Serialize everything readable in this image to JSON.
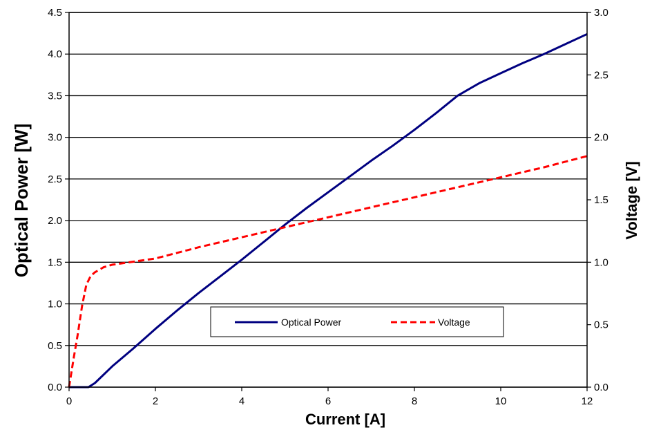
{
  "chart_data": {
    "type": "line",
    "xlabel": "Current [A]",
    "ylabel": "Optical Power [W]",
    "y2label": "Voltage [V]",
    "xlim": [
      0,
      12
    ],
    "ylim": [
      0,
      4.5
    ],
    "y2lim": [
      0,
      3.0
    ],
    "xticks": [
      "0",
      "2",
      "4",
      "6",
      "8",
      "10",
      "12"
    ],
    "yticks": [
      "0.0",
      "0.5",
      "1.0",
      "1.5",
      "2.0",
      "2.5",
      "3.0",
      "3.5",
      "4.0",
      "4.5"
    ],
    "y2ticks": [
      "0.0",
      "0.5",
      "1.0",
      "1.5",
      "2.0",
      "2.5",
      "3.0"
    ],
    "grid": "horizontal",
    "legend_position": "lower-right",
    "series": [
      {
        "name": "Optical Power",
        "axis": "left",
        "color": "#000080",
        "style": "solid",
        "x": [
          0,
          0.2,
          0.45,
          0.6,
          1.0,
          1.5,
          2.0,
          2.5,
          3.0,
          3.5,
          4.0,
          4.5,
          5.0,
          5.5,
          6.0,
          6.5,
          7.0,
          7.5,
          8.0,
          8.5,
          9.0,
          9.5,
          10.0,
          10.5,
          11.0,
          11.5,
          12.0
        ],
        "y": [
          0,
          0,
          0,
          0.05,
          0.25,
          0.47,
          0.7,
          0.92,
          1.13,
          1.33,
          1.53,
          1.74,
          1.95,
          2.15,
          2.34,
          2.53,
          2.72,
          2.9,
          3.09,
          3.29,
          3.5,
          3.65,
          3.77,
          3.89,
          4.0,
          4.12,
          4.24
        ]
      },
      {
        "name": "Voltage",
        "axis": "right",
        "color": "#ff0000",
        "style": "dashed",
        "x": [
          0,
          0.1,
          0.2,
          0.3,
          0.4,
          0.5,
          0.6,
          0.8,
          1.0,
          2.0,
          3.0,
          4.0,
          5.0,
          6.0,
          7.0,
          8.0,
          9.0,
          10.0,
          11.0,
          12.0
        ],
        "y": [
          0,
          0.22,
          0.42,
          0.65,
          0.82,
          0.89,
          0.92,
          0.96,
          0.98,
          1.03,
          1.12,
          1.2,
          1.28,
          1.36,
          1.44,
          1.52,
          1.6,
          1.68,
          1.76,
          1.85
        ]
      }
    ]
  }
}
